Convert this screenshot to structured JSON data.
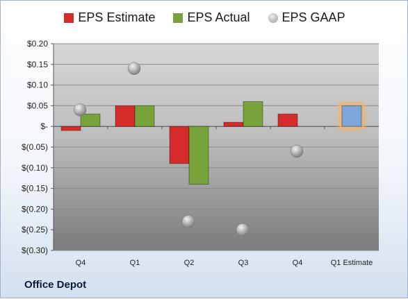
{
  "company": "Office Depot",
  "legend": {
    "estimate": "EPS Estimate",
    "actual": "EPS Actual",
    "gaap": "EPS GAAP"
  },
  "colors": {
    "estimate": "#d42b2b",
    "actual": "#77a33a",
    "gaap": "#a9a9a9",
    "next_estimate": "#7fa6d9",
    "highlight": "#f5b26b"
  },
  "chart_data": {
    "type": "bar",
    "categories": [
      "Q4",
      "Q1",
      "Q2",
      "Q3",
      "Q4",
      "Q1 Estimate"
    ],
    "series": [
      {
        "name": "EPS Estimate",
        "values": [
          -0.01,
          0.05,
          -0.09,
          0.01,
          0.03,
          0.05
        ]
      },
      {
        "name": "EPS Actual",
        "values": [
          0.03,
          0.05,
          -0.14,
          0.06,
          null,
          null
        ]
      },
      {
        "name": "EPS GAAP",
        "values": [
          0.04,
          0.14,
          -0.23,
          -0.25,
          -0.06,
          null
        ]
      }
    ],
    "ylim": [
      -0.3,
      0.2
    ],
    "yticks": [
      0.2,
      0.15,
      0.1,
      0.05,
      0,
      -0.05,
      -0.1,
      -0.15,
      -0.2,
      -0.25,
      -0.3
    ],
    "ytick_labels": [
      "$0.20",
      "$0.15",
      "$0.10",
      "$0.05",
      "$-",
      "$(0.05)",
      "$(0.10)",
      "$(0.15)",
      "$(0.20)",
      "$(0.25)",
      "$(0.30)"
    ],
    "grid": true,
    "legend_position": "top"
  }
}
